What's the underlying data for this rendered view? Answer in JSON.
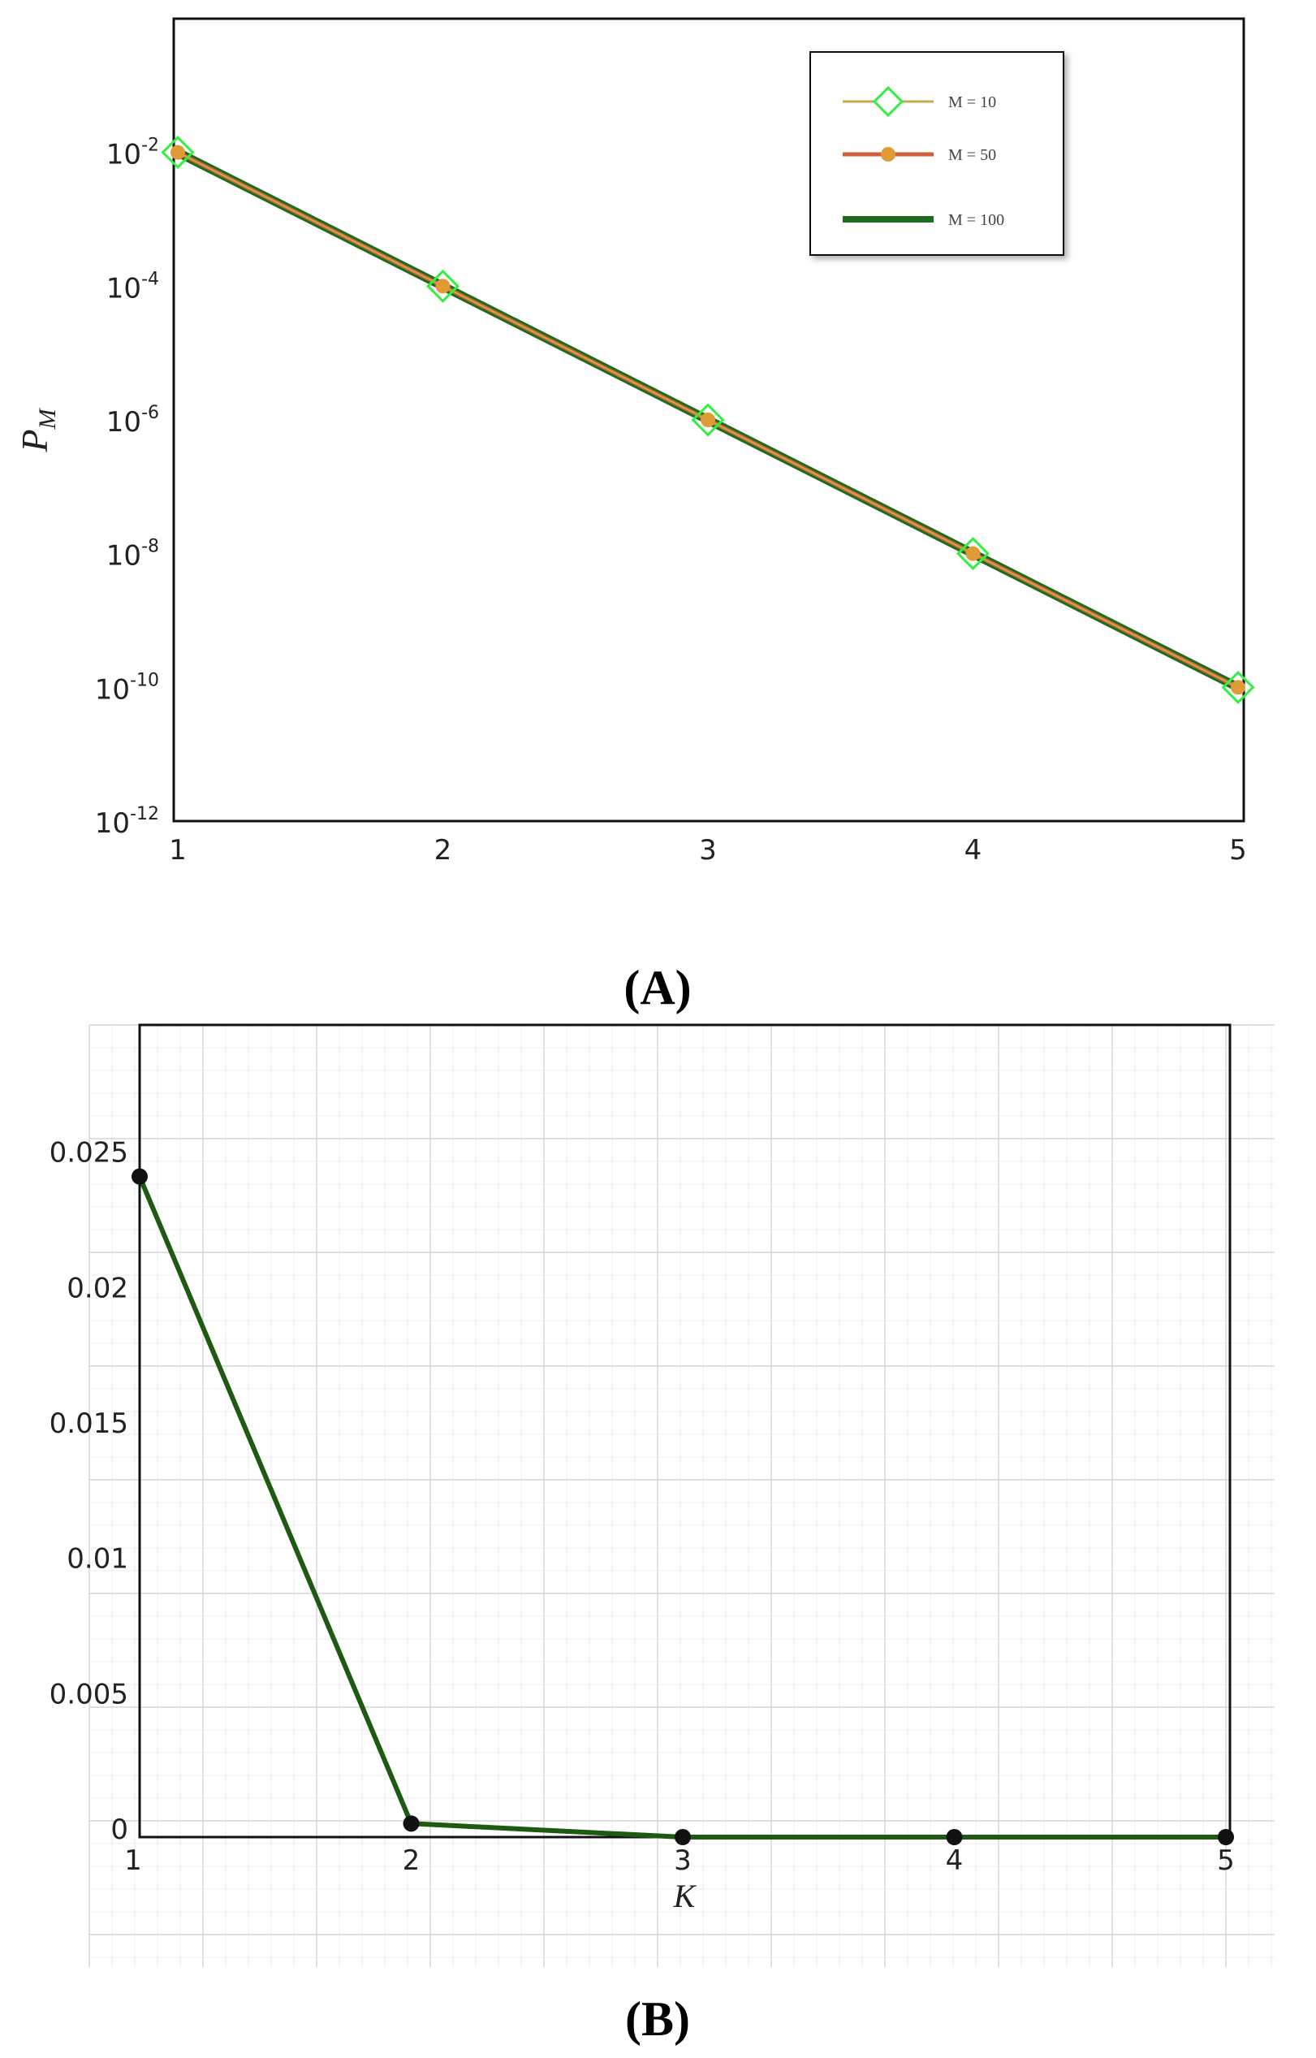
{
  "panels": [
    {
      "label_text": "(A)",
      "label_letter": "A"
    },
    {
      "label_text": "(B)",
      "label_letter": "B"
    }
  ],
  "chart_data": [
    {
      "type": "line",
      "panel": "A",
      "xlabel": "",
      "ylabel": "P_M",
      "ylabel_main": "P",
      "ylabel_sub": "M",
      "yscale": "log",
      "xlim": [
        1,
        5
      ],
      "ylim": [
        1e-12,
        1
      ],
      "x_ticks": [
        1,
        2,
        3,
        4,
        5
      ],
      "y_ticks": [
        {
          "base": "10",
          "exp": "-2",
          "value": 0.01
        },
        {
          "base": "10",
          "exp": "-4",
          "value": 0.0001
        },
        {
          "base": "10",
          "exp": "-6",
          "value": 1e-06
        },
        {
          "base": "10",
          "exp": "-8",
          "value": 1e-08
        },
        {
          "base": "10",
          "exp": "-10",
          "value": 1e-10
        },
        {
          "base": "10",
          "exp": "-12",
          "value": 1e-12
        }
      ],
      "legend_position": "top-right",
      "series": [
        {
          "name": "M = 10",
          "color": "#33ee44",
          "line_color": "#c9a84a",
          "marker": "open-diamond",
          "x": [
            1,
            2,
            3,
            4,
            5
          ],
          "y": [
            0.01,
            0.0001,
            1e-06,
            1e-08,
            1e-10
          ]
        },
        {
          "name": "M = 50",
          "color": "#d2603a",
          "marker": "filled-circle",
          "x": [
            1,
            2,
            3,
            4,
            5
          ],
          "y": [
            0.01,
            0.0001,
            1e-06,
            1e-08,
            1e-10
          ]
        },
        {
          "name": "M = 100",
          "color": "#1e6b1e",
          "marker": "none",
          "x": [
            1,
            2,
            3,
            4,
            5
          ],
          "y": [
            0.01,
            0.0001,
            1e-06,
            1e-08,
            1e-10
          ]
        }
      ]
    },
    {
      "type": "line",
      "panel": "B",
      "xlabel": "K",
      "ylabel": "",
      "xlim": [
        1,
        5
      ],
      "ylim": [
        0,
        0.03
      ],
      "x_ticks": [
        1,
        2,
        3,
        4,
        5
      ],
      "y_ticks": [
        {
          "label": "0.025",
          "value": 0.025
        },
        {
          "label": "0.02",
          "value": 0.02
        },
        {
          "label": "0.015",
          "value": 0.015
        },
        {
          "label": "0.01",
          "value": 0.01
        },
        {
          "label": "0.005",
          "value": 0.005
        },
        {
          "label": "0",
          "value": 0
        }
      ],
      "grid": true,
      "series": [
        {
          "name": "",
          "color": "#1e5a12",
          "marker_color": "#111111",
          "x": [
            1,
            2,
            3,
            4,
            5
          ],
          "y": [
            0.0244,
            0.0005,
            0.0,
            0.0,
            0.0
          ]
        }
      ]
    }
  ]
}
